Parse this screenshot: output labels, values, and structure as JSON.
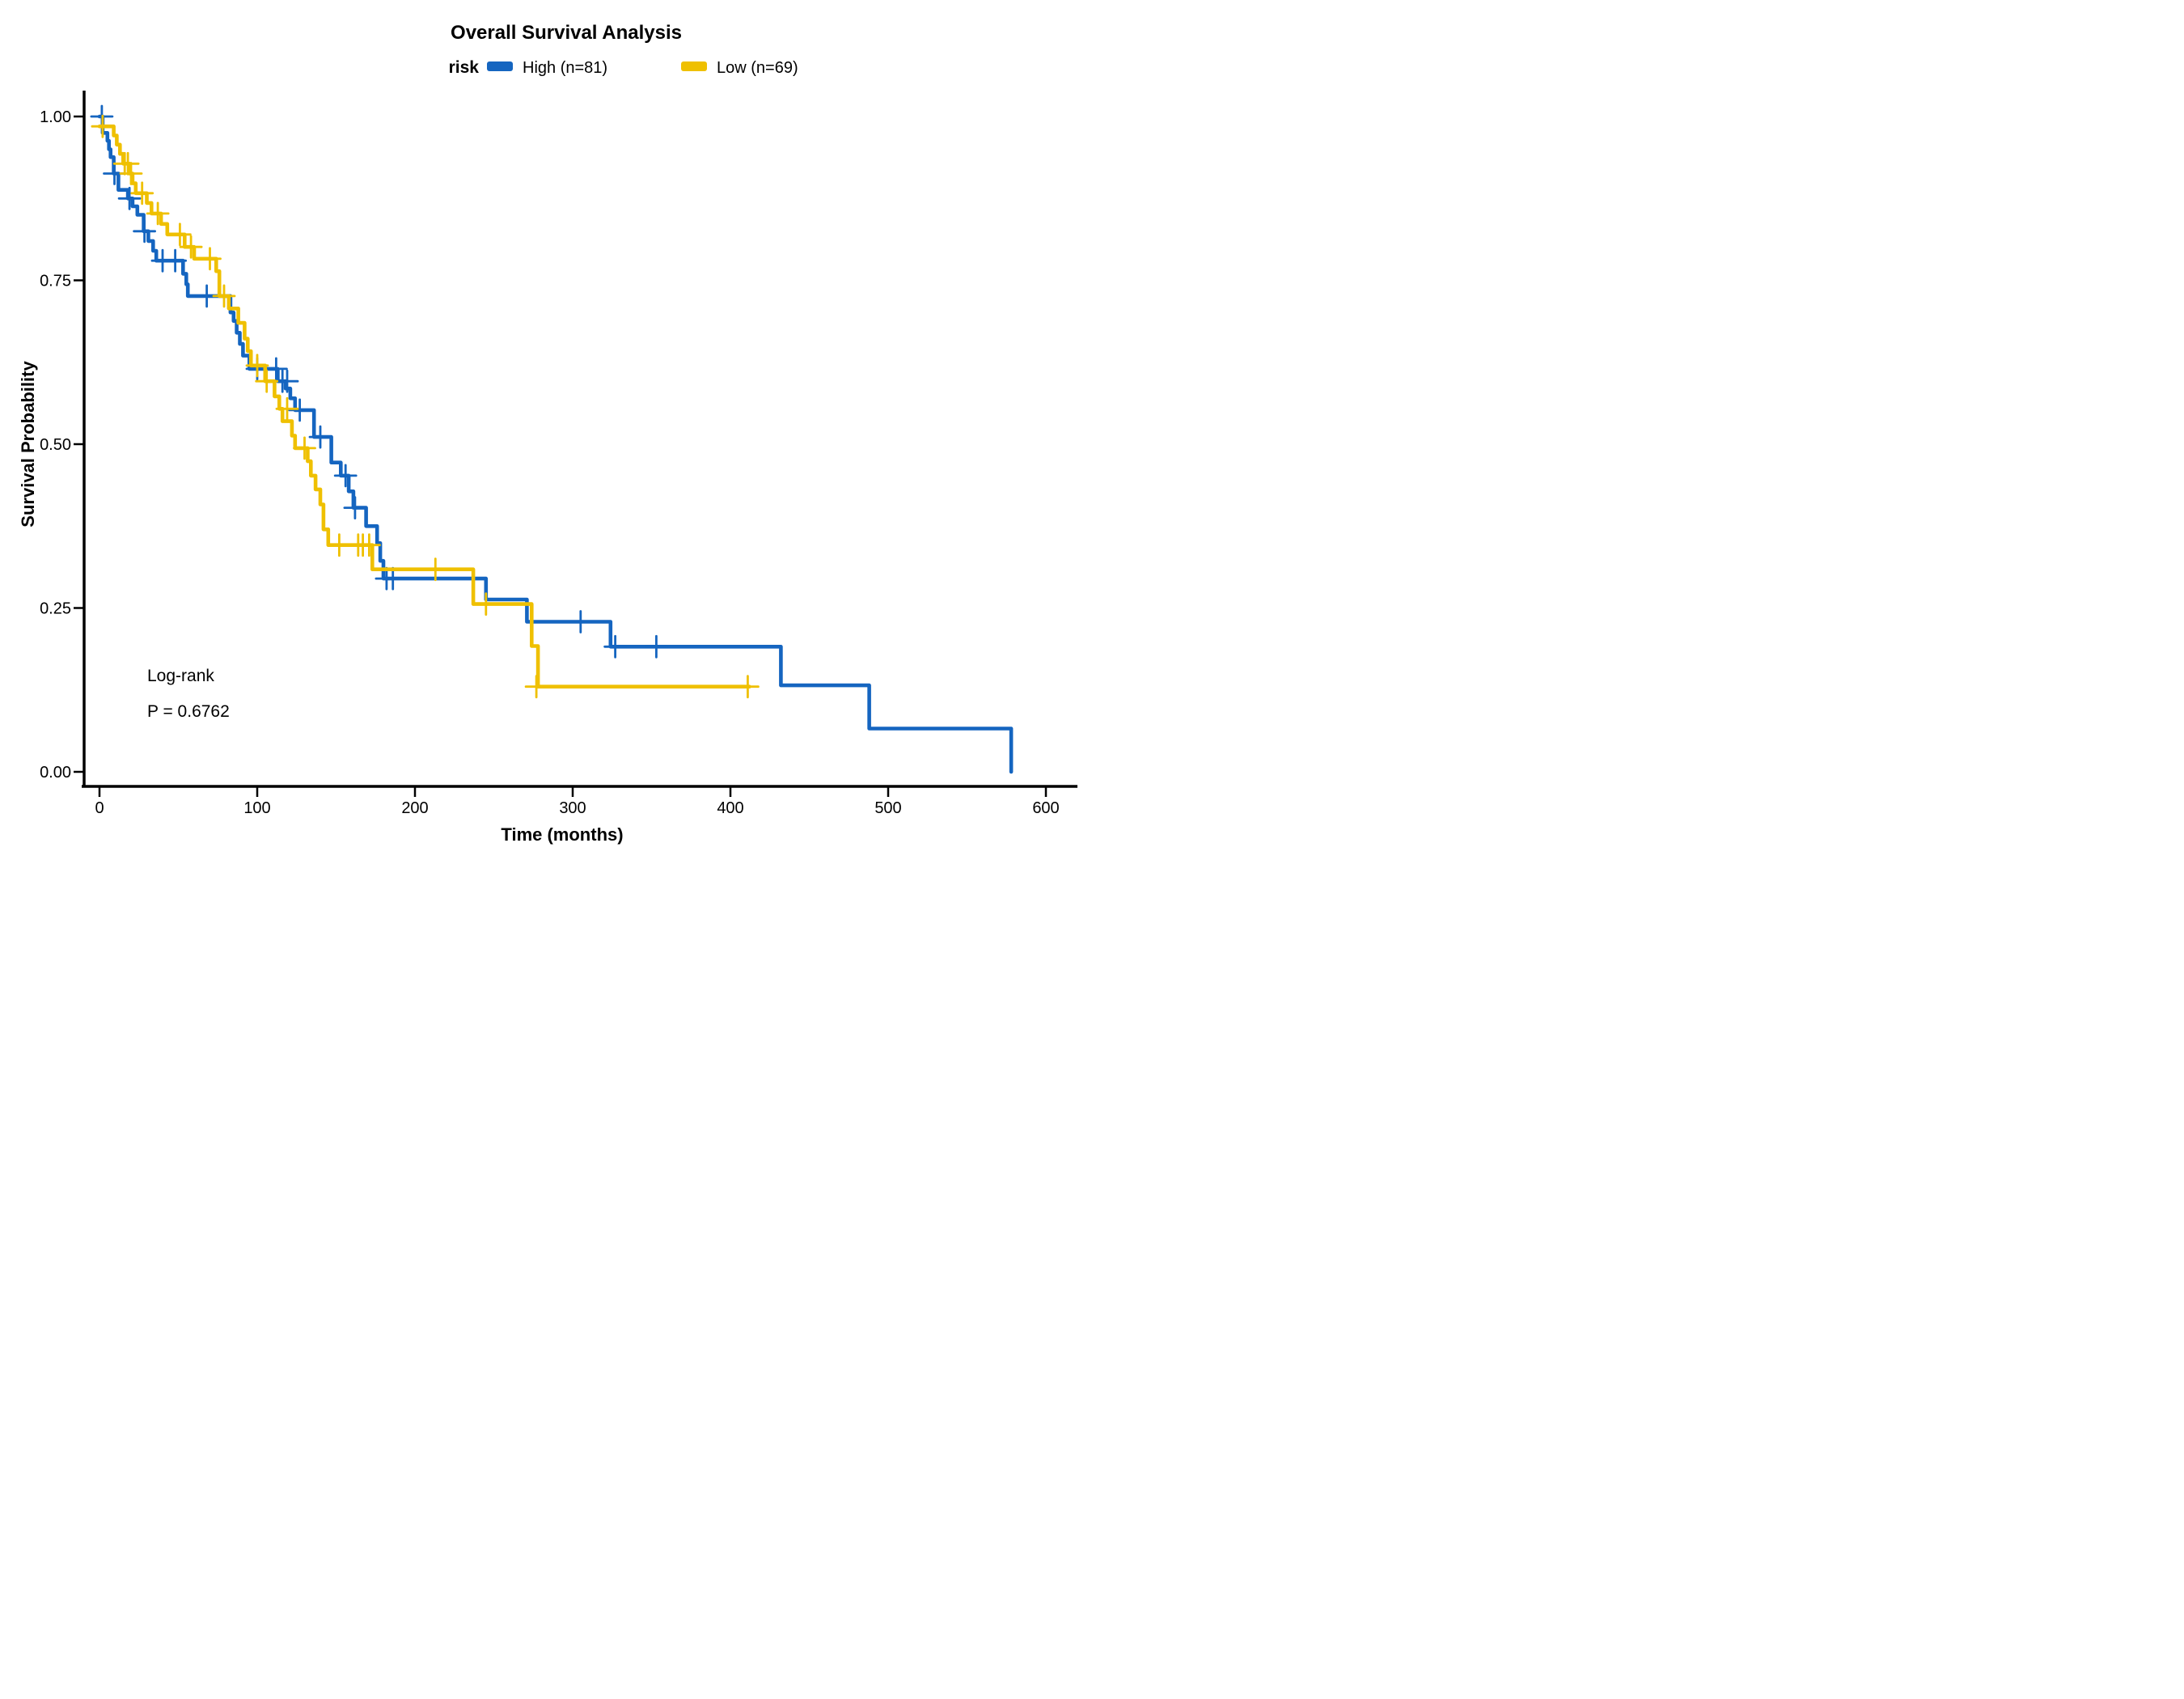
{
  "page": {
    "background": "#FFFFFF"
  },
  "chart_data": {
    "type": "line",
    "subtype": "kaplan-meier-step-curves",
    "title": "Overall Survival Analysis",
    "xlabel": "Time (months)",
    "ylabel": "Survival Probability",
    "grid": false,
    "legend": {
      "title": "risk",
      "position": "top",
      "entries": [
        {
          "label": "High (n=81)",
          "color": "#1565C0"
        },
        {
          "label": "Low (n=69)",
          "color": "#EFC000"
        }
      ]
    },
    "annotation": {
      "line1": "Log-rank",
      "line2": "P = 0.6762"
    },
    "x_axis": {
      "range": [
        -10,
        620
      ],
      "ticks": [
        {
          "value": 0,
          "label": "0"
        },
        {
          "value": 100,
          "label": "100"
        },
        {
          "value": 200,
          "label": "200"
        },
        {
          "value": 300,
          "label": "300"
        },
        {
          "value": 400,
          "label": "400"
        },
        {
          "value": 500,
          "label": "500"
        },
        {
          "value": 600,
          "label": "600"
        }
      ]
    },
    "y_axis": {
      "range": [
        0,
        1
      ],
      "ticks": [
        {
          "value": 0.0,
          "label": "0.00"
        },
        {
          "value": 0.25,
          "label": "0.25"
        },
        {
          "value": 0.5,
          "label": "0.50"
        },
        {
          "value": 0.75,
          "label": "0.75"
        },
        {
          "value": 1.0,
          "label": "1.00"
        }
      ]
    },
    "series": [
      {
        "id": "high",
        "name": "High (n=81)",
        "n": 81,
        "color": "#1565C0",
        "steps": [
          [
            0,
            1.0
          ],
          [
            2,
            0.975
          ],
          [
            5,
            0.963
          ],
          [
            6,
            0.95
          ],
          [
            7,
            0.938
          ],
          [
            9,
            0.913
          ],
          [
            12,
            0.888
          ],
          [
            18,
            0.875
          ],
          [
            21,
            0.863
          ],
          [
            24,
            0.85
          ],
          [
            28,
            0.825
          ],
          [
            31,
            0.81
          ],
          [
            34,
            0.795
          ],
          [
            36,
            0.78
          ],
          [
            53,
            0.76
          ],
          [
            55,
            0.744
          ],
          [
            56,
            0.726
          ],
          [
            83,
            0.701
          ],
          [
            85,
            0.688
          ],
          [
            87,
            0.67
          ],
          [
            89,
            0.653
          ],
          [
            91,
            0.635
          ],
          [
            95,
            0.615
          ],
          [
            113,
            0.596
          ],
          [
            118,
            0.585
          ],
          [
            121,
            0.57
          ],
          [
            124,
            0.552
          ],
          [
            136,
            0.511
          ],
          [
            147,
            0.472
          ],
          [
            153,
            0.452
          ],
          [
            158,
            0.428
          ],
          [
            161,
            0.403
          ],
          [
            169,
            0.375
          ],
          [
            176,
            0.349
          ],
          [
            178,
            0.322
          ],
          [
            180,
            0.295
          ],
          [
            245,
            0.263
          ],
          [
            271,
            0.229
          ],
          [
            324,
            0.191
          ],
          [
            432,
            0.132
          ],
          [
            488,
            0.066
          ],
          [
            578,
            0.0
          ]
        ],
        "censors": [
          [
            1.5,
            1.0
          ],
          [
            9.5,
            0.913
          ],
          [
            19,
            0.875
          ],
          [
            28.5,
            0.825
          ],
          [
            40,
            0.78
          ],
          [
            48,
            0.78
          ],
          [
            68,
            0.726
          ],
          [
            100,
            0.615
          ],
          [
            112,
            0.615
          ],
          [
            116,
            0.596
          ],
          [
            119,
            0.596
          ],
          [
            127,
            0.552
          ],
          [
            140,
            0.511
          ],
          [
            156,
            0.452
          ],
          [
            162,
            0.403
          ],
          [
            182,
            0.295
          ],
          [
            186,
            0.295
          ],
          [
            305,
            0.229
          ],
          [
            327,
            0.191
          ],
          [
            353,
            0.191
          ]
        ]
      },
      {
        "id": "low",
        "name": "Low (n=69)",
        "n": 69,
        "color": "#EFC000",
        "steps": [
          [
            0,
            0.985
          ],
          [
            9,
            0.971
          ],
          [
            11,
            0.957
          ],
          [
            13,
            0.943
          ],
          [
            15,
            0.928
          ],
          [
            19,
            0.913
          ],
          [
            21,
            0.898
          ],
          [
            23,
            0.883
          ],
          [
            30,
            0.868
          ],
          [
            33,
            0.852
          ],
          [
            39,
            0.836
          ],
          [
            43,
            0.82
          ],
          [
            54,
            0.801
          ],
          [
            60,
            0.783
          ],
          [
            74,
            0.764
          ],
          [
            76,
            0.726
          ],
          [
            82,
            0.707
          ],
          [
            88,
            0.685
          ],
          [
            92,
            0.661
          ],
          [
            94,
            0.642
          ],
          [
            96,
            0.62
          ],
          [
            105,
            0.596
          ],
          [
            111,
            0.573
          ],
          [
            114,
            0.554
          ],
          [
            116,
            0.535
          ],
          [
            122,
            0.513
          ],
          [
            124,
            0.494
          ],
          [
            132,
            0.474
          ],
          [
            134,
            0.452
          ],
          [
            137,
            0.431
          ],
          [
            140,
            0.408
          ],
          [
            142,
            0.37
          ],
          [
            145,
            0.346
          ],
          [
            173,
            0.309
          ],
          [
            237,
            0.256
          ],
          [
            274,
            0.192
          ],
          [
            278,
            0.13
          ],
          [
            412,
            0.13
          ]
        ],
        "censors": [
          [
            2,
            0.985
          ],
          [
            16,
            0.928
          ],
          [
            18,
            0.928
          ],
          [
            20,
            0.913
          ],
          [
            27,
            0.883
          ],
          [
            37,
            0.852
          ],
          [
            51,
            0.82
          ],
          [
            58,
            0.801
          ],
          [
            70,
            0.783
          ],
          [
            79,
            0.726
          ],
          [
            100,
            0.62
          ],
          [
            106,
            0.596
          ],
          [
            119,
            0.554
          ],
          [
            130,
            0.494
          ],
          [
            152,
            0.346
          ],
          [
            164,
            0.346
          ],
          [
            167,
            0.346
          ],
          [
            171,
            0.346
          ],
          [
            213,
            0.309
          ],
          [
            245,
            0.256
          ],
          [
            277,
            0.13
          ],
          [
            411,
            0.13
          ]
        ]
      }
    ]
  }
}
